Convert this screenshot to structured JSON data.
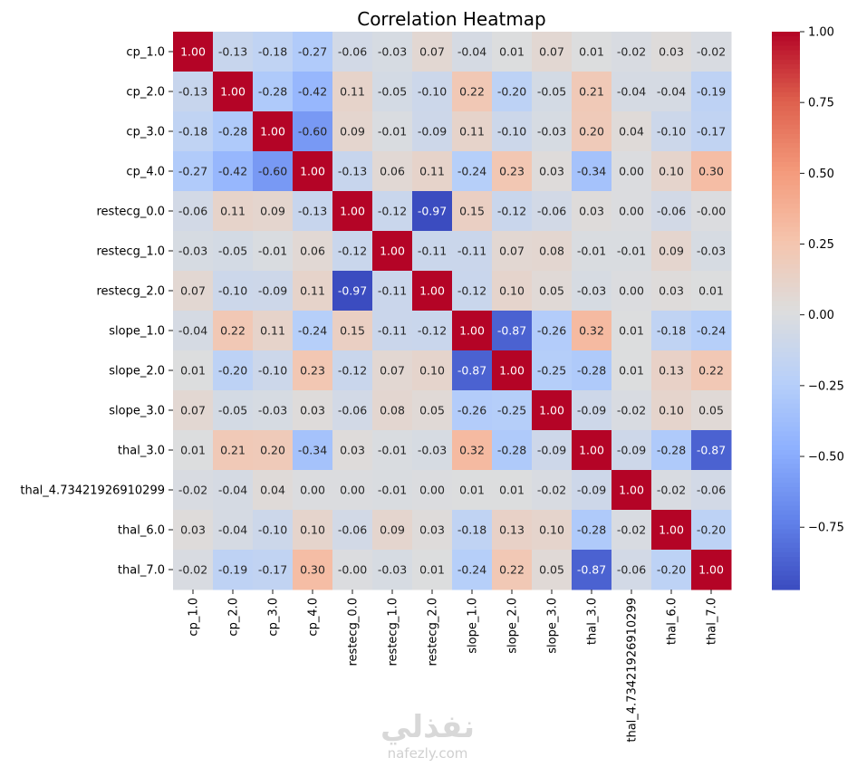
{
  "chart_data": {
    "type": "heatmap",
    "title": "Correlation Heatmap",
    "xlabel": "",
    "ylabel": "",
    "labels": [
      "cp_1.0",
      "cp_2.0",
      "cp_3.0",
      "cp_4.0",
      "restecg_0.0",
      "restecg_1.0",
      "restecg_2.0",
      "slope_1.0",
      "slope_2.0",
      "slope_3.0",
      "thal_3.0",
      "thal_4.73421926910299",
      "thal_6.0",
      "thal_7.0"
    ],
    "values": [
      [
        1.0,
        -0.13,
        -0.18,
        -0.27,
        -0.06,
        -0.03,
        0.07,
        -0.04,
        0.01,
        0.07,
        0.01,
        -0.02,
        0.03,
        -0.02
      ],
      [
        -0.13,
        1.0,
        -0.28,
        -0.42,
        0.11,
        -0.05,
        -0.1,
        0.22,
        -0.2,
        -0.05,
        0.21,
        -0.04,
        -0.04,
        -0.19
      ],
      [
        -0.18,
        -0.28,
        1.0,
        -0.6,
        0.09,
        -0.01,
        -0.09,
        0.11,
        -0.1,
        -0.03,
        0.2,
        0.04,
        -0.1,
        -0.17
      ],
      [
        -0.27,
        -0.42,
        -0.6,
        1.0,
        -0.13,
        0.06,
        0.11,
        -0.24,
        0.23,
        0.03,
        -0.34,
        0.0,
        0.1,
        0.3
      ],
      [
        -0.06,
        0.11,
        0.09,
        -0.13,
        1.0,
        -0.12,
        -0.97,
        0.15,
        -0.12,
        -0.06,
        0.03,
        0.0,
        -0.06,
        -0.0
      ],
      [
        -0.03,
        -0.05,
        -0.01,
        0.06,
        -0.12,
        1.0,
        -0.11,
        -0.11,
        0.07,
        0.08,
        -0.01,
        -0.01,
        0.09,
        -0.03
      ],
      [
        0.07,
        -0.1,
        -0.09,
        0.11,
        -0.97,
        -0.11,
        1.0,
        -0.12,
        0.1,
        0.05,
        -0.03,
        0.0,
        0.03,
        0.01
      ],
      [
        -0.04,
        0.22,
        0.11,
        -0.24,
        0.15,
        -0.11,
        -0.12,
        1.0,
        -0.87,
        -0.26,
        0.32,
        0.01,
        -0.18,
        -0.24
      ],
      [
        0.01,
        -0.2,
        -0.1,
        0.23,
        -0.12,
        0.07,
        0.1,
        -0.87,
        1.0,
        -0.25,
        -0.28,
        0.01,
        0.13,
        0.22
      ],
      [
        0.07,
        -0.05,
        -0.03,
        0.03,
        -0.06,
        0.08,
        0.05,
        -0.26,
        -0.25,
        1.0,
        -0.09,
        -0.02,
        0.1,
        0.05
      ],
      [
        0.01,
        0.21,
        0.2,
        -0.34,
        0.03,
        -0.01,
        -0.03,
        0.32,
        -0.28,
        -0.09,
        1.0,
        -0.09,
        -0.28,
        -0.87
      ],
      [
        -0.02,
        -0.04,
        0.04,
        0.0,
        0.0,
        -0.01,
        0.0,
        0.01,
        0.01,
        -0.02,
        -0.09,
        1.0,
        -0.02,
        -0.06
      ],
      [
        0.03,
        -0.04,
        -0.1,
        0.1,
        -0.06,
        0.09,
        0.03,
        -0.18,
        0.13,
        0.1,
        -0.28,
        -0.02,
        1.0,
        -0.2
      ],
      [
        -0.02,
        -0.19,
        -0.17,
        0.3,
        -0.0,
        -0.03,
        0.01,
        -0.24,
        0.22,
        0.05,
        -0.87,
        -0.06,
        -0.2,
        1.0
      ]
    ],
    "value_format": "2 decimals",
    "colormap": "coolwarm",
    "color_range": [
      -0.97,
      1.0
    ],
    "colorbar_ticks": [
      "1.00",
      "0.75",
      "0.50",
      "0.25",
      "0.00",
      "−0.25",
      "−0.50",
      "−0.75"
    ],
    "colorbar_tick_values": [
      1.0,
      0.75,
      0.5,
      0.25,
      0.0,
      -0.25,
      -0.5,
      -0.75
    ],
    "colors": {
      "low": "#3b4cc0",
      "mid": "#dddddd",
      "high": "#b40426"
    }
  },
  "watermark": {
    "arabic": "نفذلي",
    "latin": "nafezly.com"
  }
}
